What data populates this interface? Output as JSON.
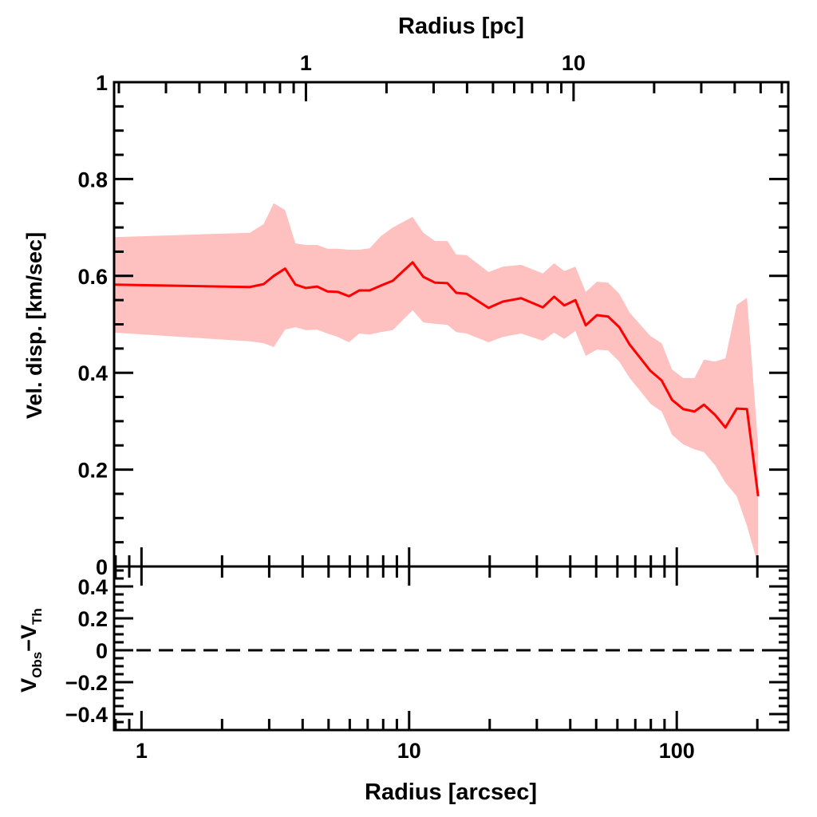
{
  "chart_data": {
    "type": "line",
    "colors": {
      "line": "#ff0000",
      "band": "#ffc0c0",
      "axes": "#000000"
    },
    "panels": [
      {
        "name": "main",
        "ylabel": "Vel. disp. [km/sec]",
        "ylim": [
          0,
          1
        ],
        "ytick_labels": [
          "0",
          "0.2",
          "0.4",
          "0.6",
          "0.8",
          "1"
        ],
        "series": {
          "x": [
            0.79,
            2.54,
            2.86,
            3.12,
            3.44,
            3.76,
            4.11,
            4.53,
            4.95,
            5.41,
            5.96,
            6.51,
            7.12,
            7.84,
            8.69,
            10.3,
            11.3,
            12.5,
            13.9,
            15.0,
            16.4,
            19.8,
            22.4,
            26.2,
            31.6,
            34.8,
            38.0,
            41.8,
            45.7,
            50.3,
            55.4,
            61.0,
            66.7,
            73.9,
            79.7,
            87.8,
            96.0,
            105.7,
            116.4,
            126.3,
            139.0,
            152.0,
            167.5,
            182.9,
            201.4
          ],
          "y": [
            0.582,
            0.577,
            0.583,
            0.6,
            0.615,
            0.582,
            0.575,
            0.578,
            0.568,
            0.567,
            0.558,
            0.57,
            0.57,
            0.58,
            0.59,
            0.628,
            0.598,
            0.586,
            0.585,
            0.565,
            0.563,
            0.534,
            0.547,
            0.554,
            0.535,
            0.557,
            0.539,
            0.55,
            0.498,
            0.519,
            0.516,
            0.494,
            0.458,
            0.427,
            0.404,
            0.384,
            0.344,
            0.325,
            0.32,
            0.334,
            0.313,
            0.287,
            0.326,
            0.325,
            0.145
          ],
          "y_upper": [
            0.68,
            0.689,
            0.707,
            0.75,
            0.736,
            0.667,
            0.664,
            0.664,
            0.656,
            0.656,
            0.654,
            0.654,
            0.657,
            0.682,
            0.7,
            0.722,
            0.689,
            0.672,
            0.672,
            0.644,
            0.643,
            0.608,
            0.619,
            0.623,
            0.605,
            0.626,
            0.61,
            0.619,
            0.567,
            0.588,
            0.586,
            0.563,
            0.524,
            0.496,
            0.476,
            0.461,
            0.407,
            0.389,
            0.389,
            0.427,
            0.423,
            0.43,
            0.54,
            0.555,
            0.25
          ],
          "y_lower": [
            0.483,
            0.465,
            0.461,
            0.453,
            0.489,
            0.494,
            0.488,
            0.489,
            0.481,
            0.474,
            0.463,
            0.481,
            0.479,
            0.484,
            0.488,
            0.529,
            0.504,
            0.501,
            0.499,
            0.484,
            0.481,
            0.463,
            0.474,
            0.481,
            0.466,
            0.483,
            0.47,
            0.486,
            0.435,
            0.448,
            0.446,
            0.423,
            0.389,
            0.359,
            0.336,
            0.32,
            0.272,
            0.252,
            0.242,
            0.236,
            0.209,
            0.173,
            0.145,
            0.084,
            0.003
          ]
        }
      },
      {
        "name": "residual",
        "ylabel": {
          "main": "V",
          "sub1": "Obs",
          "minus": "−V",
          "sub2": "Th"
        },
        "ylim": [
          -0.5,
          0.525
        ],
        "ytick_labels": [
          "−0.4",
          "−0.2",
          "0",
          "0.2",
          "0.4"
        ],
        "reference_line": {
          "y": 0,
          "style": "dashed"
        }
      }
    ],
    "xaxis_bottom": {
      "label": "Radius [arcsec]",
      "scale": "log",
      "xlim": [
        0.79,
        261
      ],
      "tick_labels": [
        "1",
        "10",
        "100"
      ]
    },
    "xaxis_top": {
      "label": "Radius [pc]",
      "scale": "log",
      "tick_labels": [
        "1",
        "10"
      ],
      "pc_per_arcsec": 0.243
    },
    "grid": false
  }
}
